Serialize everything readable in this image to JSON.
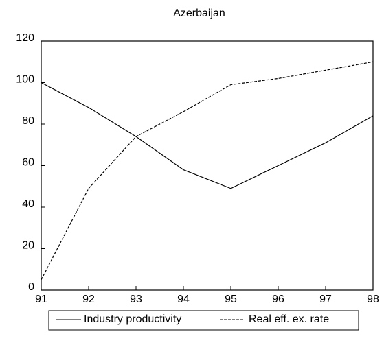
{
  "chart_data": {
    "type": "line",
    "title": "Azerbaijan",
    "categories": [
      "91",
      "92",
      "93",
      "94",
      "95",
      "96",
      "97",
      "98"
    ],
    "series": [
      {
        "name": "Industry productivity",
        "color": "#000000",
        "style": "solid",
        "values": [
          100,
          88,
          74,
          58,
          49,
          60,
          71,
          84
        ]
      },
      {
        "name": "Real eff. ex. rate",
        "color": "#000000",
        "style": "dashed",
        "values": [
          5,
          49,
          74,
          86,
          99,
          102,
          106,
          110
        ]
      }
    ],
    "ylim": [
      0,
      120
    ],
    "yticks": [
      0,
      20,
      40,
      60,
      80,
      100,
      120
    ],
    "legend": "bottom"
  }
}
